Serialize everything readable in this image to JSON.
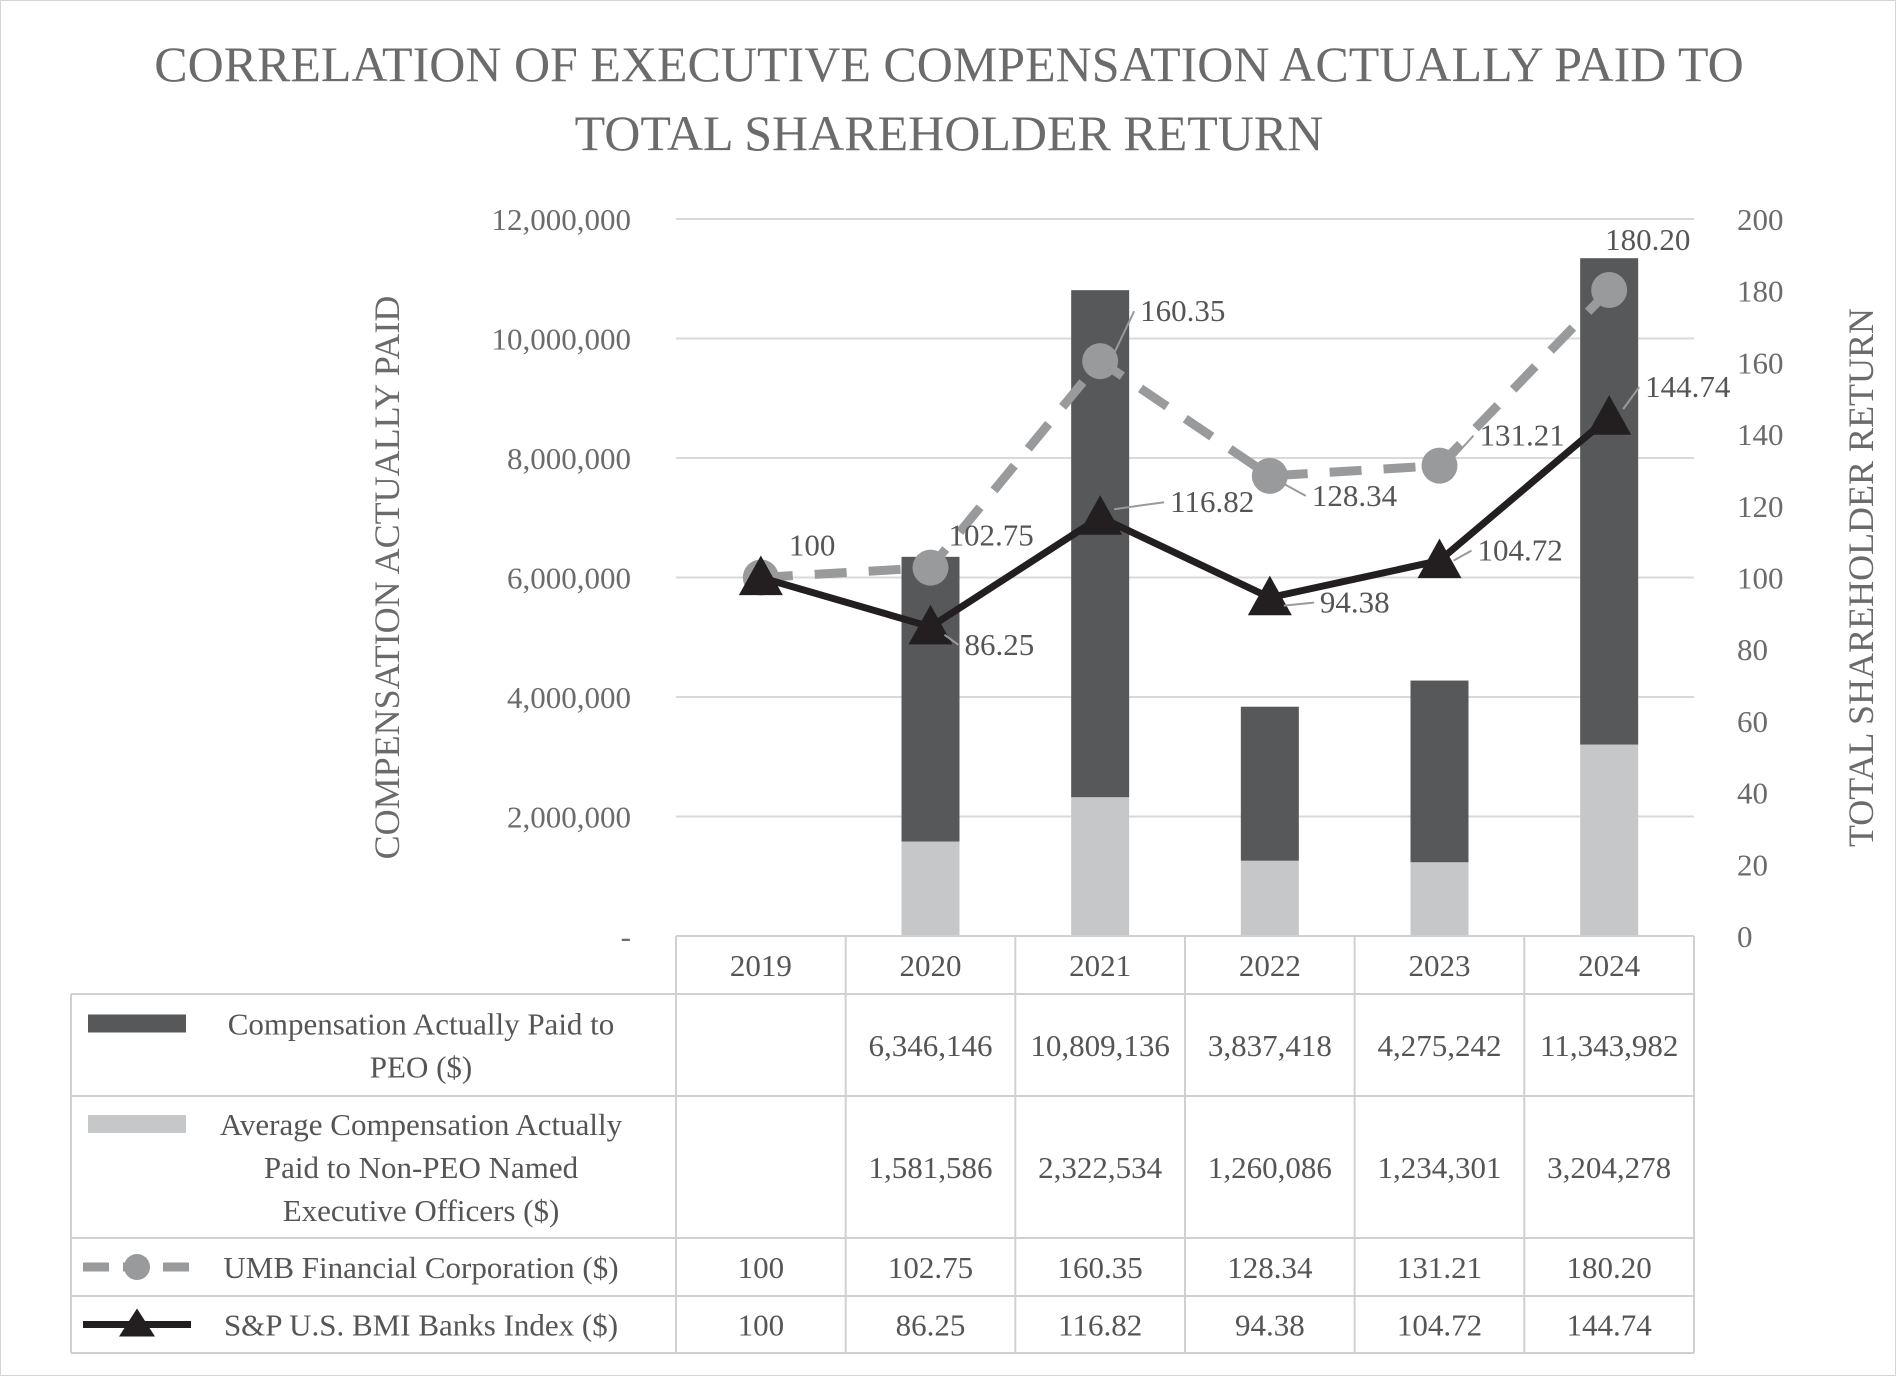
{
  "chart_data": {
    "type": "bar+line",
    "title_lines": [
      "CORRELATION OF EXECUTIVE COMPENSATION ACTUALLY PAID TO",
      "TOTAL SHAREHOLDER RETURN"
    ],
    "ylabel_left": "COMPENSATION ACTUALLY PAID",
    "ylabel_right": "TOTAL SHAREHOLDER RETURN",
    "categories": [
      "2019",
      "2020",
      "2021",
      "2022",
      "2023",
      "2024"
    ],
    "ylim_left": [
      0,
      12000000
    ],
    "yticks_left": [
      "-",
      "2,000,000",
      "4,000,000",
      "6,000,000",
      "8,000,000",
      "10,000,000",
      "12,000,000"
    ],
    "ylim_right": [
      0,
      200
    ],
    "yticks_right": [
      "0",
      "20",
      "40",
      "60",
      "80",
      "100",
      "120",
      "140",
      "160",
      "180",
      "200"
    ],
    "bar_series": [
      {
        "name": "Compensation Actually Paid to PEO ($)",
        "legend_lines": [
          "Compensation Actually Paid to",
          "PEO ($)"
        ],
        "color": "#575859",
        "values": [
          null,
          6346146,
          10809136,
          3837418,
          4275242,
          11343982
        ],
        "table_values": [
          "",
          "6,346,146",
          "10,809,136",
          "3,837,418",
          "4,275,242",
          "11,343,982"
        ]
      },
      {
        "name": "Average Compensation Actually Paid to Non-PEO Named Executive Officers ($)",
        "legend_lines": [
          "Average Compensation Actually",
          "Paid to Non-PEO Named",
          "Executive Officers ($)"
        ],
        "color": "#c6c7c8",
        "values": [
          null,
          1581586,
          2322534,
          1260086,
          1234301,
          3204278
        ],
        "table_values": [
          "",
          "1,581,586",
          "2,322,534",
          "1,260,086",
          "1,234,301",
          "3,204,278"
        ]
      }
    ],
    "line_series": [
      {
        "name": "UMB Financial Corporation ($)",
        "legend_lines": [
          "UMB Financial Corporation ($)"
        ],
        "color": "#999a9b",
        "style": "dashed",
        "marker": "circle",
        "values": [
          100,
          102.75,
          160.35,
          128.34,
          131.21,
          180.2
        ],
        "labels": [
          "100",
          "102.75",
          "160.35",
          "128.34",
          "131.21",
          "180.20"
        ],
        "table_values": [
          "100",
          "102.75",
          "160.35",
          "128.34",
          "131.21",
          "180.20"
        ]
      },
      {
        "name": "S&P U.S. BMI Banks Index ($)",
        "legend_lines": [
          "S&P U.S. BMI Banks Index ($)"
        ],
        "color": "#231f20",
        "style": "solid",
        "marker": "triangle",
        "values": [
          100,
          86.25,
          116.82,
          94.38,
          104.72,
          144.74
        ],
        "labels": [
          "100",
          "86.25",
          "116.82",
          "94.38",
          "104.72",
          "144.74"
        ],
        "table_values": [
          "100",
          "86.25",
          "116.82",
          "94.38",
          "104.72",
          "144.74"
        ]
      }
    ],
    "grid": true,
    "legend_position": "data-table-below"
  }
}
